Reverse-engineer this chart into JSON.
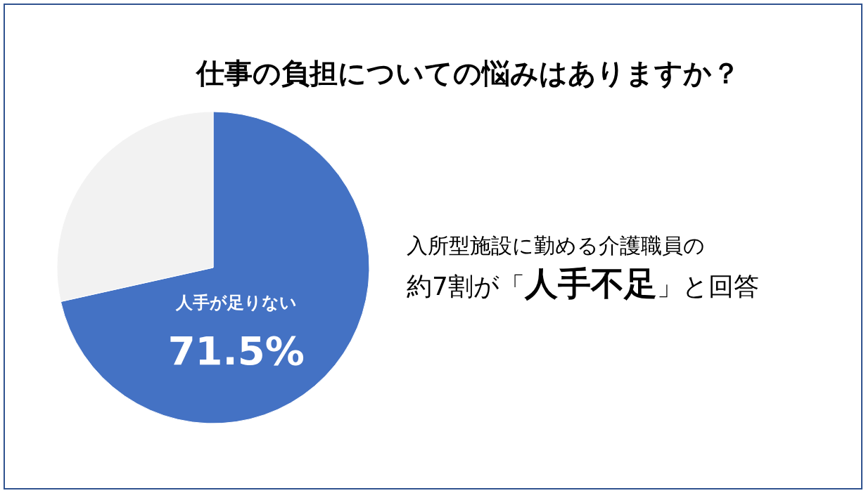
{
  "chart_data": {
    "type": "pie",
    "title": "仕事の負担についての悩みはありますか？",
    "categories": [
      "人手が足りない",
      null
    ],
    "values": [
      71.5,
      28.5
    ],
    "colors": [
      "#4472c4",
      "#f2f2f2"
    ],
    "value_labels": [
      "71.5%",
      null
    ],
    "annotations": [
      "入所型施設に勤める介護職員の",
      "約7割が「**人手不足**」と回答"
    ]
  }
}
